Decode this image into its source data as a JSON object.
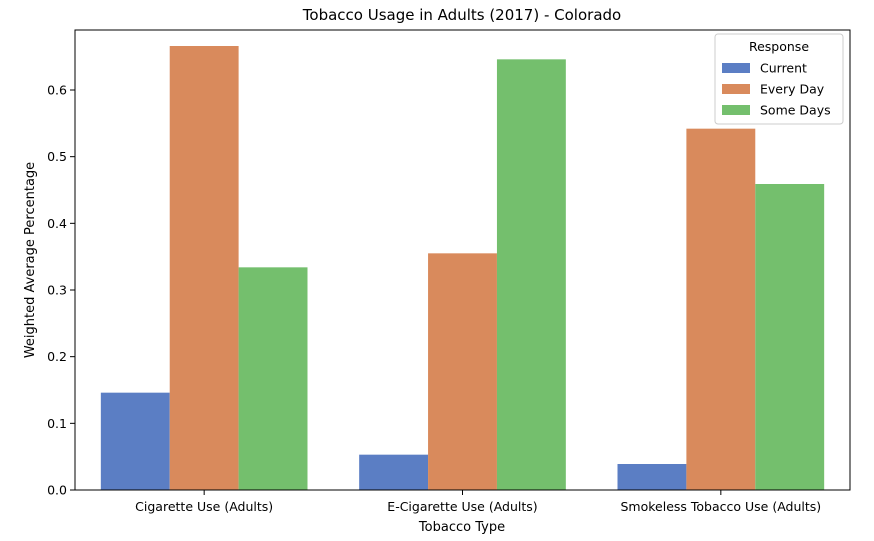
{
  "chart_data": {
    "type": "bar",
    "title": "Tobacco Usage in Adults (2017) - Colorado",
    "xlabel": "Tobacco Type",
    "ylabel": "Weighted Average Percentage",
    "categories": [
      "Cigarette Use (Adults)",
      "E-Cigarette Use (Adults)",
      "Smokeless Tobacco Use (Adults)"
    ],
    "series": [
      {
        "name": "Current",
        "color": "#5b7ec4",
        "values": [
          0.146,
          0.053,
          0.039
        ]
      },
      {
        "name": "Every Day",
        "color": "#d98a5c",
        "values": [
          0.666,
          0.355,
          0.542
        ]
      },
      {
        "name": "Some Days",
        "color": "#74bf6d",
        "values": [
          0.334,
          0.646,
          0.459
        ]
      }
    ],
    "ylim": [
      0,
      0.69
    ],
    "yticks": [
      0.0,
      0.1,
      0.2,
      0.3,
      0.4,
      0.5,
      0.6
    ],
    "ytick_labels": [
      "0.0",
      "0.1",
      "0.2",
      "0.3",
      "0.4",
      "0.5",
      "0.6"
    ],
    "legend": {
      "title": "Response",
      "placement": "top-right"
    },
    "grid": false
  }
}
